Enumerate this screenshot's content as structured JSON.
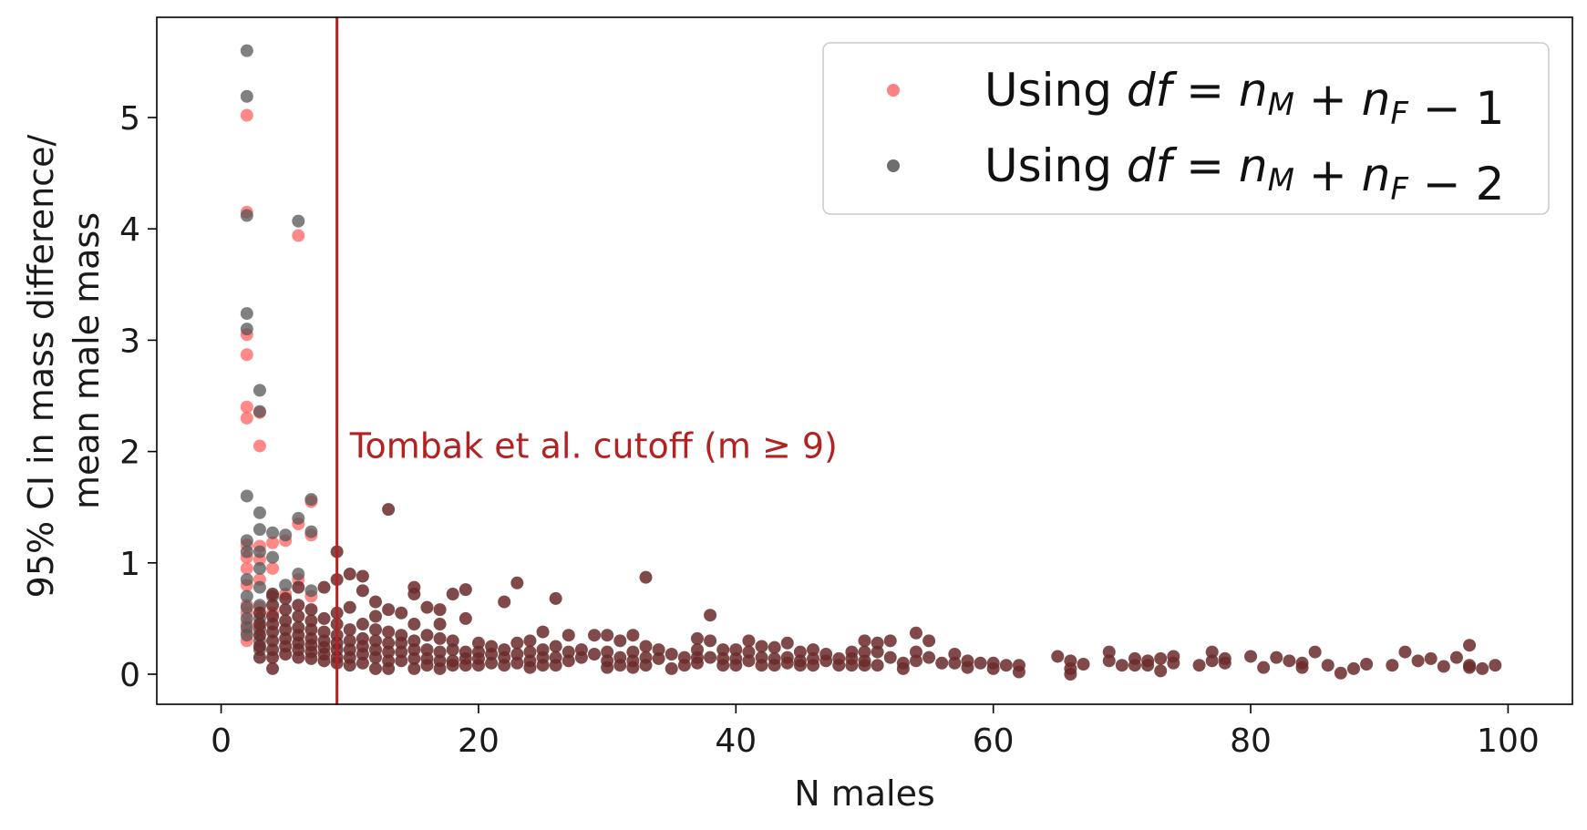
{
  "chart_data": {
    "type": "scatter",
    "xlabel": "N males",
    "ylabel_lines": [
      "95% CI in mass difference/",
      "mean male mass"
    ],
    "xlim": [
      -5,
      105
    ],
    "ylim": [
      -0.27,
      5.9
    ],
    "xticks": [
      0,
      20,
      40,
      60,
      80,
      100
    ],
    "yticks": [
      0,
      1,
      2,
      3,
      4,
      5
    ],
    "grid": false,
    "legend_position": "top-right",
    "colors": {
      "df1": "#ff6b6b",
      "df2": "#555555",
      "cutoff": "#b22222"
    },
    "annotation": {
      "text": "Tombak et al. cutoff (m ≥ 9)",
      "x": 10,
      "y": 2.05
    },
    "cutoff_x": 9,
    "series": [
      {
        "name": "Using df = nM + nF − 1",
        "legend_prefix": "Using ",
        "legend_math": "df = nM + nF − 1",
        "points": [
          [
            2,
            5.02
          ],
          [
            2,
            4.15
          ],
          [
            2,
            3.05
          ],
          [
            2,
            2.87
          ],
          [
            2,
            2.4
          ],
          [
            2,
            2.3
          ],
          [
            2,
            1.16
          ],
          [
            2,
            1.05
          ],
          [
            2,
            0.95
          ],
          [
            2,
            0.8
          ],
          [
            2,
            0.62
          ],
          [
            2,
            0.55
          ],
          [
            2,
            0.45
          ],
          [
            2,
            0.38
          ],
          [
            2,
            0.3
          ],
          [
            3,
            2.35
          ],
          [
            3,
            2.05
          ],
          [
            3,
            1.15
          ],
          [
            3,
            1.03
          ],
          [
            3,
            0.85
          ],
          [
            3,
            0.6
          ],
          [
            3,
            0.42
          ],
          [
            4,
            1.18
          ],
          [
            4,
            0.95
          ],
          [
            4,
            0.55
          ],
          [
            5,
            1.2
          ],
          [
            5,
            0.72
          ],
          [
            6,
            3.94
          ],
          [
            6,
            1.35
          ],
          [
            6,
            0.85
          ],
          [
            7,
            1.55
          ],
          [
            7,
            1.25
          ],
          [
            7,
            0.7
          ]
        ]
      },
      {
        "name": "Using df = nM + nF − 2",
        "legend_prefix": "Using ",
        "legend_math": "df = nM + nF − 2",
        "points": [
          [
            2,
            5.6
          ],
          [
            2,
            5.19
          ],
          [
            2,
            4.12
          ],
          [
            2,
            3.24
          ],
          [
            2,
            3.1
          ],
          [
            2,
            1.6
          ],
          [
            2,
            1.2
          ],
          [
            2,
            1.1
          ],
          [
            2,
            0.85
          ],
          [
            2,
            0.7
          ],
          [
            2,
            0.6
          ],
          [
            2,
            0.5
          ],
          [
            2,
            0.42
          ],
          [
            2,
            0.35
          ],
          [
            3,
            2.55
          ],
          [
            3,
            2.36
          ],
          [
            3,
            1.45
          ],
          [
            3,
            1.3
          ],
          [
            3,
            1.1
          ],
          [
            3,
            0.95
          ],
          [
            3,
            0.78
          ],
          [
            3,
            0.62
          ],
          [
            3,
            0.5
          ],
          [
            3,
            0.4
          ],
          [
            3,
            0.3
          ],
          [
            3,
            0.22
          ],
          [
            4,
            1.27
          ],
          [
            4,
            1.05
          ],
          [
            4,
            0.7
          ],
          [
            5,
            1.25
          ],
          [
            5,
            0.8
          ],
          [
            6,
            4.07
          ],
          [
            6,
            1.4
          ],
          [
            6,
            0.9
          ],
          [
            7,
            1.57
          ],
          [
            7,
            1.28
          ],
          [
            7,
            0.75
          ]
        ]
      }
    ],
    "main_points": [
      [
        3,
        0.15
      ],
      [
        3,
        0.25
      ],
      [
        3,
        0.35
      ],
      [
        3,
        0.45
      ],
      [
        3,
        0.55
      ],
      [
        4,
        0.05
      ],
      [
        4,
        0.15
      ],
      [
        4,
        0.22
      ],
      [
        4,
        0.3
      ],
      [
        4,
        0.38
      ],
      [
        4,
        0.45
      ],
      [
        4,
        0.52
      ],
      [
        4,
        0.62
      ],
      [
        4,
        0.72
      ],
      [
        5,
        0.18
      ],
      [
        5,
        0.25
      ],
      [
        5,
        0.32
      ],
      [
        5,
        0.4
      ],
      [
        5,
        0.48
      ],
      [
        5,
        0.58
      ],
      [
        5,
        0.68
      ],
      [
        6,
        0.15
      ],
      [
        6,
        0.22
      ],
      [
        6,
        0.28
      ],
      [
        6,
        0.35
      ],
      [
        6,
        0.42
      ],
      [
        6,
        0.52
      ],
      [
        6,
        0.62
      ],
      [
        6,
        0.78
      ],
      [
        7,
        0.14
      ],
      [
        7,
        0.2
      ],
      [
        7,
        0.26
      ],
      [
        7,
        0.32
      ],
      [
        7,
        0.4
      ],
      [
        7,
        0.48
      ],
      [
        7,
        0.58
      ],
      [
        8,
        0.12
      ],
      [
        8,
        0.18
      ],
      [
        8,
        0.24
      ],
      [
        8,
        0.3
      ],
      [
        8,
        0.38
      ],
      [
        8,
        0.5
      ],
      [
        8,
        0.78
      ],
      [
        9,
        1.1
      ],
      [
        9,
        0.85
      ],
      [
        9,
        0.55
      ],
      [
        9,
        0.45
      ],
      [
        9,
        0.35
      ],
      [
        9,
        0.28
      ],
      [
        9,
        0.22
      ],
      [
        9,
        0.15
      ],
      [
        9,
        0.1
      ],
      [
        10,
        0.9
      ],
      [
        10,
        0.6
      ],
      [
        10,
        0.4
      ],
      [
        10,
        0.3
      ],
      [
        10,
        0.22
      ],
      [
        10,
        0.15
      ],
      [
        10,
        0.08
      ],
      [
        11,
        0.88
      ],
      [
        11,
        0.75
      ],
      [
        11,
        0.45
      ],
      [
        11,
        0.32
      ],
      [
        11,
        0.25
      ],
      [
        11,
        0.18
      ],
      [
        11,
        0.1
      ],
      [
        12,
        0.65
      ],
      [
        12,
        0.52
      ],
      [
        12,
        0.4
      ],
      [
        12,
        0.3
      ],
      [
        12,
        0.22
      ],
      [
        12,
        0.15
      ],
      [
        12,
        0.05
      ],
      [
        13,
        1.48
      ],
      [
        13,
        0.58
      ],
      [
        13,
        0.38
      ],
      [
        13,
        0.28
      ],
      [
        13,
        0.2
      ],
      [
        13,
        0.12
      ],
      [
        13,
        0.05
      ],
      [
        14,
        0.55
      ],
      [
        14,
        0.35
      ],
      [
        14,
        0.28
      ],
      [
        14,
        0.2
      ],
      [
        14,
        0.12
      ],
      [
        15,
        0.78
      ],
      [
        15,
        0.72
      ],
      [
        15,
        0.45
      ],
      [
        15,
        0.3
      ],
      [
        15,
        0.22
      ],
      [
        15,
        0.14
      ],
      [
        15,
        0.05
      ],
      [
        16,
        0.6
      ],
      [
        16,
        0.35
      ],
      [
        16,
        0.22
      ],
      [
        16,
        0.14
      ],
      [
        16,
        0.08
      ],
      [
        17,
        0.58
      ],
      [
        17,
        0.45
      ],
      [
        17,
        0.32
      ],
      [
        17,
        0.2
      ],
      [
        17,
        0.12
      ],
      [
        17,
        0.05
      ],
      [
        18,
        0.72
      ],
      [
        18,
        0.3
      ],
      [
        18,
        0.22
      ],
      [
        18,
        0.12
      ],
      [
        18,
        0.08
      ],
      [
        19,
        0.76
      ],
      [
        19,
        0.5
      ],
      [
        19,
        0.2
      ],
      [
        19,
        0.14
      ],
      [
        19,
        0.08
      ],
      [
        20,
        0.28
      ],
      [
        20,
        0.2
      ],
      [
        20,
        0.14
      ],
      [
        20,
        0.08
      ],
      [
        21,
        0.25
      ],
      [
        21,
        0.18
      ],
      [
        21,
        0.1
      ],
      [
        22,
        0.65
      ],
      [
        22,
        0.22
      ],
      [
        22,
        0.15
      ],
      [
        22,
        0.08
      ],
      [
        23,
        0.82
      ],
      [
        23,
        0.28
      ],
      [
        23,
        0.18
      ],
      [
        23,
        0.1
      ],
      [
        24,
        0.3
      ],
      [
        24,
        0.2
      ],
      [
        24,
        0.12
      ],
      [
        24,
        0.06
      ],
      [
        25,
        0.38
      ],
      [
        25,
        0.22
      ],
      [
        25,
        0.15
      ],
      [
        25,
        0.08
      ],
      [
        26,
        0.68
      ],
      [
        26,
        0.25
      ],
      [
        26,
        0.15
      ],
      [
        26,
        0.08
      ],
      [
        27,
        0.35
      ],
      [
        27,
        0.2
      ],
      [
        27,
        0.12
      ],
      [
        28,
        0.22
      ],
      [
        28,
        0.15
      ],
      [
        29,
        0.35
      ],
      [
        29,
        0.18
      ],
      [
        30,
        0.35
      ],
      [
        30,
        0.2
      ],
      [
        30,
        0.12
      ],
      [
        30,
        0.06
      ],
      [
        31,
        0.3
      ],
      [
        31,
        0.15
      ],
      [
        31,
        0.08
      ],
      [
        32,
        0.35
      ],
      [
        32,
        0.2
      ],
      [
        32,
        0.12
      ],
      [
        32,
        0.06
      ],
      [
        33,
        0.87
      ],
      [
        33,
        0.25
      ],
      [
        33,
        0.15
      ],
      [
        33,
        0.08
      ],
      [
        34,
        0.22
      ],
      [
        34,
        0.14
      ],
      [
        35,
        0.18
      ],
      [
        35,
        0.05
      ],
      [
        36,
        0.15
      ],
      [
        36,
        0.08
      ],
      [
        37,
        0.32
      ],
      [
        37,
        0.22
      ],
      [
        37,
        0.15
      ],
      [
        37,
        0.1
      ],
      [
        38,
        0.53
      ],
      [
        38,
        0.3
      ],
      [
        38,
        0.15
      ],
      [
        39,
        0.22
      ],
      [
        39,
        0.14
      ],
      [
        39,
        0.08
      ],
      [
        40,
        0.22
      ],
      [
        40,
        0.14
      ],
      [
        40,
        0.08
      ],
      [
        41,
        0.3
      ],
      [
        41,
        0.2
      ],
      [
        41,
        0.12
      ],
      [
        42,
        0.25
      ],
      [
        42,
        0.15
      ],
      [
        42,
        0.08
      ],
      [
        43,
        0.24
      ],
      [
        43,
        0.14
      ],
      [
        43,
        0.08
      ],
      [
        44,
        0.28
      ],
      [
        44,
        0.15
      ],
      [
        44,
        0.1
      ],
      [
        45,
        0.2
      ],
      [
        45,
        0.12
      ],
      [
        45,
        0.08
      ],
      [
        46,
        0.22
      ],
      [
        46,
        0.14
      ],
      [
        46,
        0.08
      ],
      [
        47,
        0.18
      ],
      [
        47,
        0.12
      ],
      [
        48,
        0.14
      ],
      [
        48,
        0.08
      ],
      [
        49,
        0.2
      ],
      [
        49,
        0.14
      ],
      [
        49,
        0.08
      ],
      [
        50,
        0.3
      ],
      [
        50,
        0.2
      ],
      [
        50,
        0.12
      ],
      [
        50,
        0.08
      ],
      [
        51,
        0.28
      ],
      [
        51,
        0.2
      ],
      [
        51,
        0.08
      ],
      [
        52,
        0.3
      ],
      [
        52,
        0.15
      ],
      [
        53,
        0.1
      ],
      [
        53,
        0.05
      ],
      [
        54,
        0.37
      ],
      [
        54,
        0.2
      ],
      [
        54,
        0.12
      ],
      [
        55,
        0.3
      ],
      [
        55,
        0.15
      ],
      [
        56,
        0.1
      ],
      [
        57,
        0.18
      ],
      [
        57,
        0.1
      ],
      [
        58,
        0.12
      ],
      [
        58,
        0.06
      ],
      [
        59,
        0.1
      ],
      [
        60,
        0.1
      ],
      [
        60,
        0.05
      ],
      [
        61,
        0.08
      ],
      [
        62,
        0.08
      ],
      [
        62,
        0.02
      ],
      [
        65,
        0.16
      ],
      [
        66,
        0.12
      ],
      [
        66,
        0.05
      ],
      [
        66,
        0.0
      ],
      [
        67,
        0.09
      ],
      [
        69,
        0.2
      ],
      [
        69,
        0.12
      ],
      [
        70,
        0.08
      ],
      [
        71,
        0.14
      ],
      [
        71,
        0.08
      ],
      [
        72,
        0.12
      ],
      [
        72,
        0.08
      ],
      [
        73,
        0.14
      ],
      [
        73,
        0.03
      ],
      [
        74,
        0.16
      ],
      [
        74,
        0.1
      ],
      [
        76,
        0.08
      ],
      [
        77,
        0.2
      ],
      [
        77,
        0.12
      ],
      [
        78,
        0.14
      ],
      [
        78,
        0.1
      ],
      [
        80,
        0.16
      ],
      [
        81,
        0.06
      ],
      [
        82,
        0.15
      ],
      [
        83,
        0.12
      ],
      [
        84,
        0.1
      ],
      [
        84,
        0.06
      ],
      [
        85,
        0.2
      ],
      [
        86,
        0.08
      ],
      [
        87,
        0.01
      ],
      [
        88,
        0.05
      ],
      [
        89,
        0.09
      ],
      [
        91,
        0.08
      ],
      [
        92,
        0.2
      ],
      [
        93,
        0.12
      ],
      [
        94,
        0.14
      ],
      [
        95,
        0.07
      ],
      [
        96,
        0.15
      ],
      [
        97,
        0.26
      ],
      [
        97,
        0.08
      ],
      [
        97,
        0.06
      ],
      [
        98,
        0.05
      ],
      [
        99,
        0.08
      ]
    ],
    "main_color": "#6b2a2a"
  }
}
